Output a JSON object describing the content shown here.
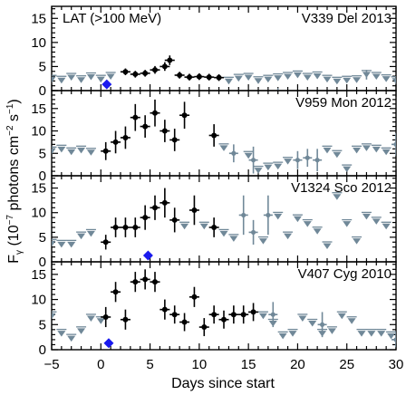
{
  "chart_data": {
    "type": "scatter",
    "x_axis": {
      "label": "Days since start",
      "range": [
        -5,
        30
      ],
      "ticks": [
        -5,
        0,
        5,
        10,
        15,
        20,
        25,
        30
      ],
      "tick_labels": [
        "−5",
        "0",
        "5",
        "10",
        "15",
        "20",
        "25",
        "30"
      ]
    },
    "y_axis": {
      "label": "F",
      "label_sub": "γ",
      "label_rest": " (10",
      "label_exp1": "−7",
      "label_mid": " photons cm",
      "label_exp2": "−2",
      "label_s": " s",
      "label_exp3": "−1",
      "label_end": ")"
    },
    "colors": {
      "detection": "#000000",
      "upper_limit": "#708898",
      "optical_peak": "#1a1aee"
    },
    "panels": [
      {
        "name": "V339 Del 2013",
        "corner_label": "LAT (>100 MeV)",
        "ylim": [
          0,
          17.5
        ],
        "yticks": [
          0,
          5,
          10,
          15
        ],
        "ytick_labels": [
          "0",
          "5",
          "10",
          "15"
        ],
        "optical_peak": {
          "x": 0.6,
          "y": 1.3
        },
        "detections": [
          {
            "x": 2.5,
            "y": 3.9,
            "err": 0.7
          },
          {
            "x": 3.5,
            "y": 3.4,
            "err": 0.7
          },
          {
            "x": 4.5,
            "y": 3.6,
            "err": 0.7
          },
          {
            "x": 5.5,
            "y": 4.3,
            "err": 0.8
          },
          {
            "x": 6.5,
            "y": 5.0,
            "err": 0.9
          },
          {
            "x": 7.0,
            "y": 6.3,
            "err": 1.0
          },
          {
            "x": 8.0,
            "y": 3.2,
            "err": 0.7
          },
          {
            "x": 9.0,
            "y": 2.8,
            "err": 0.7
          },
          {
            "x": 10.0,
            "y": 2.9,
            "err": 0.7
          },
          {
            "x": 11.0,
            "y": 2.8,
            "err": 0.7
          },
          {
            "x": 12.0,
            "y": 2.7,
            "err": 0.7
          }
        ],
        "upper_limits": [
          {
            "x": -5,
            "y": 2.6
          },
          {
            "x": -4,
            "y": 2.4
          },
          {
            "x": -3,
            "y": 3.0
          },
          {
            "x": -2,
            "y": 2.5
          },
          {
            "x": -1,
            "y": 3.1
          },
          {
            "x": 0,
            "y": 2.6
          },
          {
            "x": 1.0,
            "y": 3.2
          },
          {
            "x": 13,
            "y": 2.2
          },
          {
            "x": 14,
            "y": 2.8
          },
          {
            "x": 15,
            "y": 3.0
          },
          {
            "x": 16,
            "y": 2.3
          },
          {
            "x": 17,
            "y": 2.6
          },
          {
            "x": 18,
            "y": 2.9
          },
          {
            "x": 19,
            "y": 3.2
          },
          {
            "x": 20,
            "y": 3.5
          },
          {
            "x": 21,
            "y": 3.0
          },
          {
            "x": 22,
            "y": 3.3
          },
          {
            "x": 23,
            "y": 2.6
          },
          {
            "x": 24,
            "y": 2.2
          },
          {
            "x": 25,
            "y": 2.4
          },
          {
            "x": 26,
            "y": 2.5
          },
          {
            "x": 27,
            "y": 3.6
          },
          {
            "x": 28,
            "y": 3.2
          },
          {
            "x": 29,
            "y": 2.7
          },
          {
            "x": 30,
            "y": 2.3
          }
        ],
        "ul_bars": [
          {
            "x": 18,
            "y": 0.0,
            "err": 0.5
          },
          {
            "x": 27,
            "y": 3.3,
            "err": 1.0
          }
        ]
      },
      {
        "name": "V959 Mon 2012",
        "corner_label": "",
        "ylim": [
          0,
          19
        ],
        "yticks": [
          0,
          5,
          10,
          15
        ],
        "ytick_labels": [
          "0",
          "5",
          "10",
          "15"
        ],
        "detections": [
          {
            "x": 0.5,
            "y": 5.5,
            "err": 2.0
          },
          {
            "x": 1.5,
            "y": 7.5,
            "err": 2.5
          },
          {
            "x": 2.5,
            "y": 8.5,
            "err": 2.5
          },
          {
            "x": 3.5,
            "y": 13.0,
            "err": 3.0
          },
          {
            "x": 4.5,
            "y": 11.0,
            "err": 2.5
          },
          {
            "x": 5.5,
            "y": 14.0,
            "err": 3.0
          },
          {
            "x": 6.5,
            "y": 10.0,
            "err": 2.5
          },
          {
            "x": 7.5,
            "y": 8.0,
            "err": 2.5
          },
          {
            "x": 8.5,
            "y": 13.5,
            "err": 3.0
          },
          {
            "x": 11.5,
            "y": 9.0,
            "err": 2.5
          }
        ],
        "upper_limits": [
          {
            "x": -5,
            "y": 5.8
          },
          {
            "x": -4,
            "y": 6.2
          },
          {
            "x": -3,
            "y": 5.6
          },
          {
            "x": -2,
            "y": 6.0
          },
          {
            "x": -1,
            "y": 5.5
          },
          {
            "x": 12.5,
            "y": 6.5
          },
          {
            "x": 15,
            "y": 4.8
          },
          {
            "x": 16,
            "y": 1.5
          },
          {
            "x": 17,
            "y": 2.2
          },
          {
            "x": 18,
            "y": 2.4
          },
          {
            "x": 19,
            "y": 3.5
          },
          {
            "x": 23,
            "y": 6.0
          },
          {
            "x": 24,
            "y": 5.0
          },
          {
            "x": 25,
            "y": 1.8
          },
          {
            "x": 26,
            "y": 6.0
          },
          {
            "x": 27,
            "y": 6.5
          },
          {
            "x": 28,
            "y": 6.2
          },
          {
            "x": 29,
            "y": 5.6
          }
        ],
        "gray_bars": [
          {
            "x": 13.5,
            "y": 5.0,
            "err": 2.0
          },
          {
            "x": 15.5,
            "y": 3.5,
            "err": 3.0
          },
          {
            "x": 20,
            "y": 3.5,
            "err": 2.0
          },
          {
            "x": 21,
            "y": 4.0,
            "err": 2.0
          },
          {
            "x": 22,
            "y": 3.5,
            "err": 2.5
          },
          {
            "x": 30,
            "y": 7.0,
            "err": 2.5
          }
        ]
      },
      {
        "name": "V1324 Sco 2012",
        "corner_label": "",
        "ylim": [
          0,
          17.5
        ],
        "yticks": [
          0,
          5,
          10,
          15
        ],
        "ytick_labels": [
          "0",
          "5",
          "10",
          "15"
        ],
        "optical_peak": {
          "x": 4.8,
          "y": 1.3
        },
        "detections": [
          {
            "x": 0.5,
            "y": 4.0,
            "err": 1.5
          },
          {
            "x": 1.5,
            "y": 7.0,
            "err": 2.0
          },
          {
            "x": 2.5,
            "y": 7.0,
            "err": 2.0
          },
          {
            "x": 3.5,
            "y": 7.0,
            "err": 2.0
          },
          {
            "x": 4.5,
            "y": 9.0,
            "err": 2.5
          },
          {
            "x": 5.5,
            "y": 11.0,
            "err": 2.5
          },
          {
            "x": 6.5,
            "y": 12.0,
            "err": 3.0
          },
          {
            "x": 7.5,
            "y": 8.5,
            "err": 2.5
          },
          {
            "x": 9.5,
            "y": 10.5,
            "err": 3.0
          },
          {
            "x": 11.5,
            "y": 7.0,
            "err": 2.0
          }
        ],
        "upper_limits": [
          {
            "x": -5,
            "y": 4.0
          },
          {
            "x": -4,
            "y": 3.8
          },
          {
            "x": -3,
            "y": 3.8
          },
          {
            "x": -2,
            "y": 5.5
          },
          {
            "x": -1,
            "y": 6.0
          },
          {
            "x": 8.5,
            "y": 7.5
          },
          {
            "x": 10.5,
            "y": 7.5
          },
          {
            "x": 12.5,
            "y": 6.0
          },
          {
            "x": 13.5,
            "y": 5.0
          },
          {
            "x": 16.5,
            "y": 4.5
          },
          {
            "x": 18,
            "y": 9.5
          },
          {
            "x": 19,
            "y": 5.5
          },
          {
            "x": 20,
            "y": 9.0
          },
          {
            "x": 21,
            "y": 8.0
          },
          {
            "x": 22,
            "y": 6.5
          },
          {
            "x": 23,
            "y": 3.5
          },
          {
            "x": 24,
            "y": 13.5
          },
          {
            "x": 25,
            "y": 8.0
          },
          {
            "x": 26,
            "y": 4.5
          },
          {
            "x": 27,
            "y": 9.5
          },
          {
            "x": 28,
            "y": 8.5
          },
          {
            "x": 29,
            "y": 7.5
          }
        ],
        "gray_bars": [
          {
            "x": 14.5,
            "y": 9.5,
            "err": 4.0
          },
          {
            "x": 15.5,
            "y": 6.0,
            "err": 2.5
          },
          {
            "x": 17,
            "y": 9.5,
            "err": 4.0
          }
        ]
      },
      {
        "name": "V407 Cyg 2010",
        "corner_label": "",
        "ylim": [
          0,
          17.5
        ],
        "yticks": [
          0,
          5,
          10,
          15
        ],
        "ytick_labels": [
          "0",
          "5",
          "10",
          "15"
        ],
        "optical_peak": {
          "x": 0.8,
          "y": 1.3
        },
        "detections": [
          {
            "x": 0.5,
            "y": 6.5,
            "err": 2.0
          },
          {
            "x": 1.5,
            "y": 11.5,
            "err": 2.0
          },
          {
            "x": 2.5,
            "y": 6.0,
            "err": 2.0
          },
          {
            "x": 3.5,
            "y": 13.5,
            "err": 2.0
          },
          {
            "x": 4.5,
            "y": 14.0,
            "err": 2.0
          },
          {
            "x": 5.5,
            "y": 13.5,
            "err": 2.0
          },
          {
            "x": 6.5,
            "y": 8.0,
            "err": 2.0
          },
          {
            "x": 7.5,
            "y": 7.0,
            "err": 1.8
          },
          {
            "x": 8.5,
            "y": 5.5,
            "err": 1.8
          },
          {
            "x": 9.5,
            "y": 10.5,
            "err": 2.0
          },
          {
            "x": 10.5,
            "y": 4.5,
            "err": 1.8
          },
          {
            "x": 11.5,
            "y": 7.0,
            "err": 1.8
          },
          {
            "x": 12.5,
            "y": 6.0,
            "err": 1.8
          },
          {
            "x": 13.5,
            "y": 7.0,
            "err": 1.8
          },
          {
            "x": 14.5,
            "y": 7.0,
            "err": 1.8
          },
          {
            "x": 15.5,
            "y": 7.5,
            "err": 1.8
          }
        ],
        "upper_limits": [
          {
            "x": -5,
            "y": 7.0
          },
          {
            "x": -4,
            "y": 3.5
          },
          {
            "x": -3,
            "y": 2.5
          },
          {
            "x": -2,
            "y": 4.0
          },
          {
            "x": -1,
            "y": 6.5
          },
          {
            "x": 0,
            "y": 6.0
          },
          {
            "x": 16.5,
            "y": 7.0
          },
          {
            "x": 17.5,
            "y": 5.5
          },
          {
            "x": 18.5,
            "y": 3.0
          },
          {
            "x": 19.5,
            "y": 3.5
          },
          {
            "x": 20.5,
            "y": 6.5
          },
          {
            "x": 21.5,
            "y": 5.5
          },
          {
            "x": 22.5,
            "y": 3.5
          },
          {
            "x": 23.5,
            "y": 4.0
          },
          {
            "x": 24.5,
            "y": 7.0
          },
          {
            "x": 25.5,
            "y": 6.0
          },
          {
            "x": 26.5,
            "y": 3.5
          },
          {
            "x": 27.5,
            "y": 3.5
          },
          {
            "x": 28.5,
            "y": 3.5
          },
          {
            "x": 29.5,
            "y": 3.0
          }
        ],
        "gray_bars": [
          {
            "x": 17.5,
            "y": 7.0,
            "err": 2.5
          },
          {
            "x": 22.5,
            "y": 5.0,
            "err": 2.5
          },
          {
            "x": 30,
            "y": 2.0,
            "err": 1.5
          }
        ]
      }
    ]
  }
}
